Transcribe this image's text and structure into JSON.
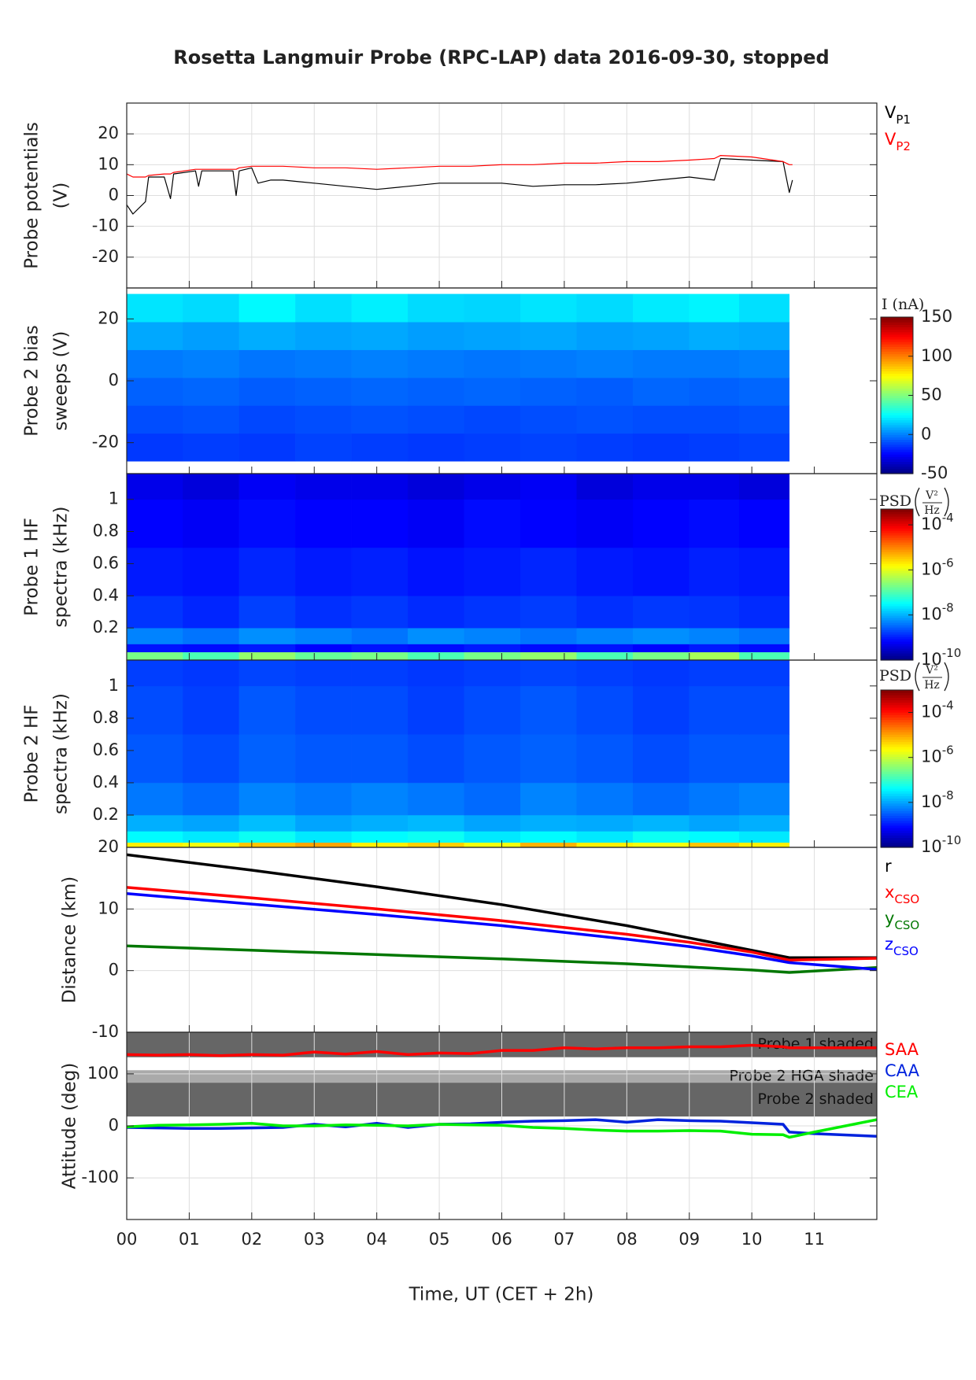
{
  "chart_data": [
    {
      "type": "line",
      "title": "Rosetta Langmuir Probe (RPC-LAP) data 2016-09-30, stopped",
      "ylabel": [
        "Probe potentials",
        "(V)"
      ],
      "grid": true,
      "line_width": 1.2,
      "xlim": [
        0,
        12
      ],
      "xticks": [
        0,
        1,
        2,
        3,
        4,
        5,
        6,
        7,
        8,
        9,
        10,
        11
      ],
      "ylim": [
        -30,
        30
      ],
      "yticks": [
        -20,
        -10,
        0,
        10,
        20
      ],
      "x": [
        0,
        0.1,
        0.3,
        0.35,
        0.6,
        0.7,
        0.75,
        1.1,
        1.15,
        1.2,
        1.7,
        1.75,
        1.8,
        2.0,
        2.1,
        2.3,
        2.5,
        3,
        3.5,
        4,
        4.5,
        5,
        5.5,
        6,
        6.5,
        7,
        7.5,
        8,
        8.5,
        9,
        9.4,
        9.5,
        10,
        10.5,
        10.6,
        10.65
      ],
      "series": [
        {
          "name": "V",
          "subscript": "P1",
          "color": "#000000",
          "values": [
            -3,
            -6,
            -2,
            6,
            6,
            -1,
            7,
            8,
            3,
            8,
            8,
            0,
            8,
            9,
            4,
            5,
            5,
            4,
            3,
            2,
            3,
            4,
            4,
            4,
            3,
            3.5,
            3.5,
            4,
            5,
            6,
            5,
            12,
            11.5,
            11,
            1,
            5
          ]
        },
        {
          "name": "V",
          "subscript": "P2",
          "color": "#ff0000",
          "values": [
            7,
            6,
            6,
            6.5,
            7,
            7,
            7.5,
            8.5,
            8.5,
            8.5,
            8.5,
            8.5,
            9,
            9.5,
            9.5,
            9.5,
            9.5,
            9,
            9,
            8.5,
            9,
            9.5,
            9.5,
            10,
            10,
            10.5,
            10.5,
            11,
            11,
            11.5,
            12,
            13,
            12.5,
            11,
            10,
            10
          ]
        }
      ]
    },
    {
      "type": "heatmap",
      "ylabel": [
        "Probe 2 bias",
        "sweeps (V)"
      ],
      "grid": false,
      "xlim": [
        0,
        12
      ],
      "xticks": [
        0,
        1,
        2,
        3,
        4,
        5,
        6,
        7,
        8,
        9,
        10,
        11
      ],
      "ylim": [
        -30,
        30
      ],
      "yticks": [
        -20,
        0,
        20
      ],
      "colorbar_label": "I (nA)",
      "colorscale": "linear",
      "clim": [
        -50,
        150
      ],
      "cticks": [
        -50,
        0,
        50,
        100,
        150
      ],
      "xbins": [
        0,
        0.9,
        1.8,
        2.7,
        3.6,
        4.5,
        5.4,
        6.3,
        7.2,
        8.1,
        9,
        9.8,
        10.6
      ],
      "ybins": [
        -26,
        -17,
        -8,
        1,
        10,
        19,
        28
      ],
      "z": [
        [
          -14,
          -13,
          -14,
          -12,
          -13,
          -14,
          -13,
          -12,
          -13,
          -14,
          -13,
          -12
        ],
        [
          -10,
          -9,
          -11,
          -10,
          -9,
          -10,
          -11,
          -10,
          -9,
          -10,
          -10,
          -9
        ],
        [
          -6,
          -5,
          -7,
          -6,
          -5,
          -6,
          -5,
          -6,
          -7,
          -5,
          -6,
          -5
        ],
        [
          -1,
          0,
          -2,
          -1,
          0,
          -1,
          -2,
          -1,
          0,
          -1,
          -1,
          0
        ],
        [
          8,
          6,
          9,
          7,
          8,
          6,
          7,
          8,
          6,
          7,
          9,
          8
        ],
        [
          20,
          18,
          24,
          19,
          22,
          18,
          17,
          20,
          18,
          21,
          23,
          19
        ]
      ]
    },
    {
      "type": "heatmap",
      "ylabel": [
        "Probe 1 HF",
        "spectra (kHz)"
      ],
      "grid": false,
      "xlim": [
        0,
        12
      ],
      "xticks": [
        0,
        1,
        2,
        3,
        4,
        5,
        6,
        7,
        8,
        9,
        10,
        11
      ],
      "ylim": [
        0,
        1.16
      ],
      "yticks": [
        0.2,
        0.4,
        0.6,
        0.8,
        1
      ],
      "colorbar_label": "PSD",
      "colorbar_unit_num": "V²",
      "colorbar_unit_den": "Hz",
      "colorscale": "log",
      "clim": [
        1e-10,
        0.0005
      ],
      "cticks": [
        {
          "value": 1e-10,
          "label": "10",
          "exponent": "-10"
        },
        {
          "value": 1e-08,
          "label": "10",
          "exponent": "-8"
        },
        {
          "value": 1e-06,
          "label": "10",
          "exponent": "-6"
        },
        {
          "value": 0.0001,
          "label": "10",
          "exponent": "-4"
        }
      ],
      "xbins": [
        0,
        0.9,
        1.8,
        2.7,
        3.6,
        4.5,
        5.4,
        6.3,
        7.2,
        8.1,
        9,
        9.8,
        10.6
      ],
      "ybins": [
        0,
        0.05,
        0.1,
        0.2,
        0.4,
        0.7,
        1.0,
        1.16
      ],
      "z": [
        [
          2e-07,
          1e-07,
          3e-07,
          1.5e-07,
          2e-07,
          1e-07,
          2e-07,
          3e-07,
          1e-07,
          2e-07,
          4e-07,
          1e-07
        ],
        [
          9e-10,
          8e-10,
          1e-09,
          7e-10,
          9e-10,
          8e-10,
          1e-09,
          8e-10,
          9e-10,
          7e-10,
          1e-09,
          8e-10
        ],
        [
          5e-09,
          4e-09,
          6e-09,
          5e-09,
          4e-09,
          6e-09,
          5e-09,
          4e-09,
          5e-09,
          6e-09,
          5e-09,
          4e-09
        ],
        [
          1.5e-09,
          1.2e-09,
          1.8e-09,
          1.4e-09,
          1.6e-09,
          1.3e-09,
          1.5e-09,
          1.7e-09,
          1.4e-09,
          1.6e-09,
          1.5e-09,
          1.3e-09
        ],
        [
          1e-09,
          9e-10,
          1.2e-09,
          1e-09,
          1.1e-09,
          9e-10,
          1e-09,
          1.2e-09,
          1e-09,
          9e-10,
          1.1e-09,
          1e-09
        ],
        [
          7e-10,
          6e-10,
          8e-10,
          7e-10,
          7e-10,
          6e-10,
          8e-10,
          7e-10,
          6e-10,
          7e-10,
          8e-10,
          7e-10
        ],
        [
          5e-10,
          4e-10,
          6e-10,
          5e-10,
          5e-10,
          4e-10,
          5e-10,
          6e-10,
          4e-10,
          5e-10,
          5e-10,
          4e-10
        ]
      ]
    },
    {
      "type": "heatmap",
      "ylabel": [
        "Probe 2 HF",
        "spectra (kHz)"
      ],
      "grid": false,
      "xlim": [
        0,
        12
      ],
      "xticks": [
        0,
        1,
        2,
        3,
        4,
        5,
        6,
        7,
        8,
        9,
        10,
        11
      ],
      "ylim": [
        0,
        1.16
      ],
      "yticks": [
        0.2,
        0.4,
        0.6,
        0.8,
        1
      ],
      "colorbar_label": "PSD",
      "colorbar_unit_num": "V²",
      "colorbar_unit_den": "Hz",
      "colorscale": "log",
      "clim": [
        1e-10,
        0.001
      ],
      "cticks": [
        {
          "value": 1e-10,
          "label": "10",
          "exponent": "-10"
        },
        {
          "value": 1e-08,
          "label": "10",
          "exponent": "-8"
        },
        {
          "value": 1e-06,
          "label": "10",
          "exponent": "-6"
        },
        {
          "value": 0.0001,
          "label": "10",
          "exponent": "-4"
        }
      ],
      "xbins": [
        0,
        0.9,
        1.8,
        2.7,
        3.6,
        4.5,
        5.4,
        6.3,
        7.2,
        8.1,
        9,
        9.8,
        10.6
      ],
      "ybins": [
        0,
        0.03,
        0.1,
        0.2,
        0.4,
        0.7,
        1.0,
        1.16
      ],
      "z": [
        [
          3e-06,
          2e-06,
          6e-06,
          1e-05,
          3e-06,
          5e-06,
          2e-06,
          8e-06,
          3e-06,
          2e-06,
          6e-06,
          3e-06
        ],
        [
          4e-08,
          3e-08,
          5e-08,
          3e-08,
          4e-08,
          5e-08,
          3e-08,
          4e-08,
          3e-08,
          5e-08,
          4e-08,
          3e-08
        ],
        [
          1.2e-08,
          1e-08,
          1.5e-08,
          1e-08,
          1.2e-08,
          1.4e-08,
          1e-08,
          1.2e-08,
          1.1e-08,
          1.3e-08,
          1e-08,
          1.2e-08
        ],
        [
          5e-09,
          4e-09,
          6e-09,
          5e-09,
          6e-09,
          5e-09,
          4e-09,
          6e-09,
          5e-09,
          4e-09,
          5e-09,
          6e-09
        ],
        [
          3e-09,
          2.5e-09,
          3.5e-09,
          3e-09,
          3e-09,
          2.5e-09,
          3e-09,
          3.5e-09,
          3e-09,
          2.5e-09,
          3e-09,
          3e-09
        ],
        [
          2.5e-09,
          2e-09,
          3e-09,
          2.5e-09,
          2.5e-09,
          2e-09,
          2.5e-09,
          3e-09,
          2.5e-09,
          2e-09,
          2.5e-09,
          2.5e-09
        ],
        [
          2e-09,
          1.8e-09,
          2.2e-09,
          2e-09,
          2e-09,
          1.8e-09,
          2e-09,
          2.2e-09,
          2e-09,
          1.8e-09,
          2e-09,
          2e-09
        ]
      ]
    },
    {
      "type": "line",
      "ylabel": [
        "Distance (km)"
      ],
      "grid": true,
      "line_width": 3.5,
      "xlim": [
        0,
        12
      ],
      "xticks": [
        0,
        1,
        2,
        3,
        4,
        5,
        6,
        7,
        8,
        9,
        10,
        11
      ],
      "ylim": [
        -10,
        20
      ],
      "yticks": [
        -10,
        0,
        10,
        20
      ],
      "x": [
        0,
        2,
        4,
        6,
        8,
        9,
        10,
        10.6,
        12
      ],
      "series": [
        {
          "name": "r",
          "color": "#000000",
          "values": [
            18.8,
            16.3,
            13.6,
            10.7,
            7.3,
            5.3,
            3.3,
            2.1,
            2.1
          ]
        },
        {
          "name": "x",
          "subscript": "CSO",
          "color": "#ff0000",
          "values": [
            13.5,
            11.8,
            10,
            8.1,
            5.9,
            4.6,
            3.0,
            1.7,
            2
          ]
        },
        {
          "name": "y",
          "subscript": "CSO",
          "color": "#007700",
          "values": [
            4,
            3.3,
            2.6,
            1.9,
            1.1,
            0.6,
            0.1,
            -0.3,
            0.5
          ]
        },
        {
          "name": "z",
          "subscript": "CSO",
          "color": "#0000ff",
          "values": [
            12.5,
            10.8,
            9.1,
            7.3,
            5.1,
            3.9,
            2.4,
            1.3,
            0.2
          ]
        }
      ]
    },
    {
      "type": "line",
      "ylabel": [
        "Attitude (deg)"
      ],
      "grid": true,
      "line_width": 3.5,
      "xlabel": "Time, UT (CET + 2h)",
      "xlim": [
        0,
        12
      ],
      "xticks": [
        {
          "value": 0,
          "label": "00"
        },
        {
          "value": 1,
          "label": "01"
        },
        {
          "value": 2,
          "label": "02"
        },
        {
          "value": 3,
          "label": "03"
        },
        {
          "value": 4,
          "label": "04"
        },
        {
          "value": 5,
          "label": "05"
        },
        {
          "value": 6,
          "label": "06"
        },
        {
          "value": 7,
          "label": "07"
        },
        {
          "value": 8,
          "label": "08"
        },
        {
          "value": 9,
          "label": "09"
        },
        {
          "value": 10,
          "label": "10"
        },
        {
          "value": 11,
          "label": "11"
        }
      ],
      "ylim": [
        -180,
        180
      ],
      "yticks": [
        -100,
        0,
        100
      ],
      "bands": [
        {
          "label": "Probe 1 shaded",
          "range": [
            132,
            181
          ],
          "color": "#666666"
        },
        {
          "label": "Probe 2 HGA shade",
          "range": [
            83,
            107
          ],
          "color": "#aaaaaa"
        },
        {
          "label": "Probe 2 shaded",
          "range": [
            18,
            83
          ],
          "color": "#666666"
        }
      ],
      "x": [
        0,
        0.5,
        1,
        1.5,
        2,
        2.5,
        3,
        3.5,
        4,
        4.5,
        5,
        5.5,
        6,
        6.5,
        7,
        7.5,
        8,
        8.5,
        9,
        9.5,
        10,
        10.5,
        10.6,
        11,
        12
      ],
      "series": [
        {
          "name": "SAA",
          "color": "#ff0000",
          "values": [
            137,
            136,
            137,
            135,
            137,
            136,
            142,
            138,
            143,
            137,
            140,
            139,
            145,
            145,
            150,
            148,
            150,
            150,
            152,
            152,
            155,
            152,
            150,
            150,
            150
          ]
        },
        {
          "name": "CAA",
          "color": "#0022dd",
          "values": [
            -3,
            -4,
            -5,
            -5,
            -4,
            -3,
            3,
            -2,
            5,
            -3,
            3,
            4,
            7,
            9,
            10,
            12,
            7,
            12,
            10,
            9,
            6,
            3,
            -12,
            -15,
            -20
          ]
        },
        {
          "name": "CEA",
          "color": "#00ee00",
          "values": [
            -2,
            1,
            2,
            3,
            5,
            0,
            0,
            2,
            1,
            0,
            3,
            2,
            1,
            -3,
            -5,
            -8,
            -10,
            -10,
            -9,
            -10,
            -16,
            -17,
            -22,
            -12,
            12
          ]
        }
      ]
    }
  ]
}
